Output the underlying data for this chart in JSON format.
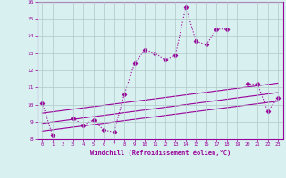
{
  "x_hours": [
    0,
    1,
    2,
    3,
    4,
    5,
    6,
    7,
    8,
    9,
    10,
    11,
    12,
    13,
    14,
    15,
    16,
    17,
    18,
    19,
    20,
    21,
    22,
    23
  ],
  "temp_line": [
    10.1,
    8.2,
    null,
    9.2,
    8.8,
    9.1,
    8.5,
    8.4,
    10.6,
    12.4,
    13.2,
    13.0,
    12.6,
    12.9,
    15.7,
    13.7,
    13.5,
    14.4,
    14.4,
    null,
    11.2,
    11.2,
    9.6,
    10.4
  ],
  "line1_pts": [
    [
      0,
      8.45
    ],
    [
      23,
      10.2
    ]
  ],
  "line2_pts": [
    [
      0,
      8.9
    ],
    [
      23,
      10.7
    ]
  ],
  "line3_pts": [
    [
      0,
      9.5
    ],
    [
      23,
      11.25
    ]
  ],
  "color": "#990099",
  "bg_color": "#d8f0f0",
  "grid_color": "#b0c8c8",
  "ylim": [
    8,
    16
  ],
  "xlim": [
    -0.5,
    23.5
  ],
  "yticks": [
    8,
    9,
    10,
    11,
    12,
    13,
    14,
    15,
    16
  ],
  "xticks": [
    0,
    1,
    2,
    3,
    4,
    5,
    6,
    7,
    8,
    9,
    10,
    11,
    12,
    13,
    14,
    15,
    16,
    17,
    18,
    19,
    20,
    21,
    22,
    23
  ],
  "xlabel": "Windchill (Refroidissement éolien,°C)",
  "markersize": 2.5
}
